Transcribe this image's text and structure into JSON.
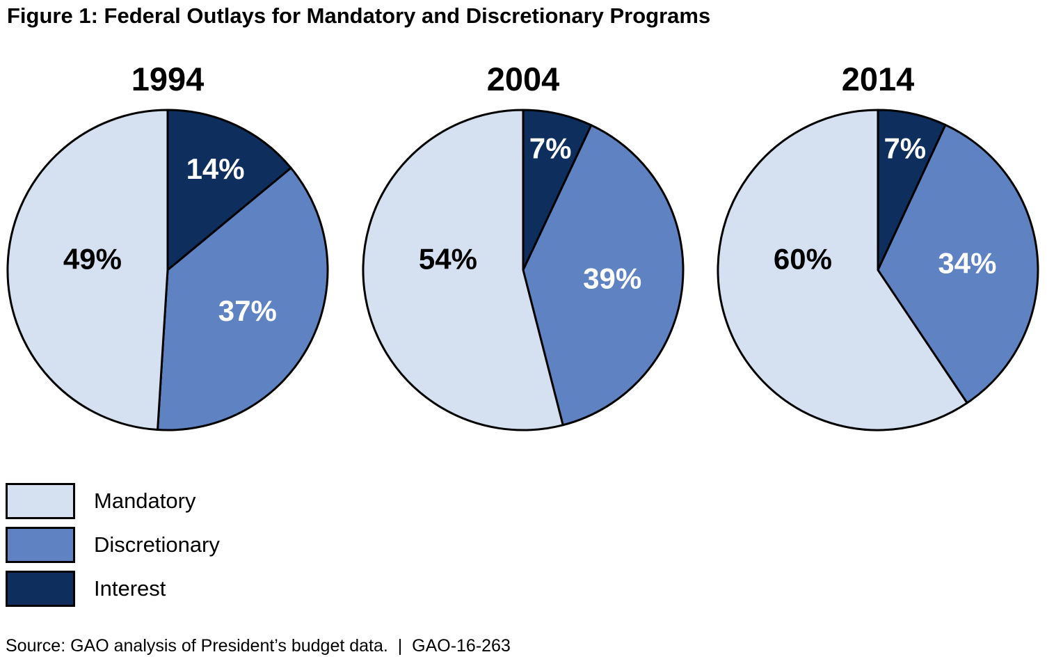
{
  "title": "Figure 1: Federal Outlays for Mandatory and Discretionary Programs",
  "source_line": "Source: GAO analysis of President’s budget data.  |  GAO-16-263",
  "colors": {
    "mandatory": "#d5e0f0",
    "discretionary": "#5f82c2",
    "interest": "#0e2e5e",
    "outline": "#000000",
    "slice_label": {
      "mandatory": "#000000",
      "discretionary": "#ffffff",
      "interest": "#ffffff"
    }
  },
  "legend": [
    {
      "key": "mandatory",
      "label": "Mandatory"
    },
    {
      "key": "discretionary",
      "label": "Discretionary"
    },
    {
      "key": "interest",
      "label": "Interest"
    }
  ],
  "chart_data": [
    {
      "type": "pie",
      "title": "1994",
      "start_angle_deg_from_top": 0,
      "direction": "clockwise",
      "slices": [
        {
          "key": "interest",
          "label": "Interest",
          "value": 14,
          "display": "14%"
        },
        {
          "key": "discretionary",
          "label": "Discretionary",
          "value": 37,
          "display": "37%"
        },
        {
          "key": "mandatory",
          "label": "Mandatory",
          "value": 49,
          "display": "49%"
        }
      ]
    },
    {
      "type": "pie",
      "title": "2004",
      "start_angle_deg_from_top": 0,
      "direction": "clockwise",
      "slices": [
        {
          "key": "interest",
          "label": "Interest",
          "value": 7,
          "display": "7%"
        },
        {
          "key": "discretionary",
          "label": "Discretionary",
          "value": 39,
          "display": "39%"
        },
        {
          "key": "mandatory",
          "label": "Mandatory",
          "value": 54,
          "display": "54%"
        }
      ]
    },
    {
      "type": "pie",
      "title": "2014",
      "start_angle_deg_from_top": 0,
      "direction": "clockwise",
      "slices": [
        {
          "key": "interest",
          "label": "Interest",
          "value": 7,
          "display": "7%"
        },
        {
          "key": "discretionary",
          "label": "Discretionary",
          "value": 34,
          "display": "34%"
        },
        {
          "key": "mandatory",
          "label": "Mandatory",
          "value": 60,
          "display": "60%"
        }
      ]
    }
  ],
  "layout_note": "three pies for 1994, 2004, 2014; legend bottom-left; source line at bottom"
}
